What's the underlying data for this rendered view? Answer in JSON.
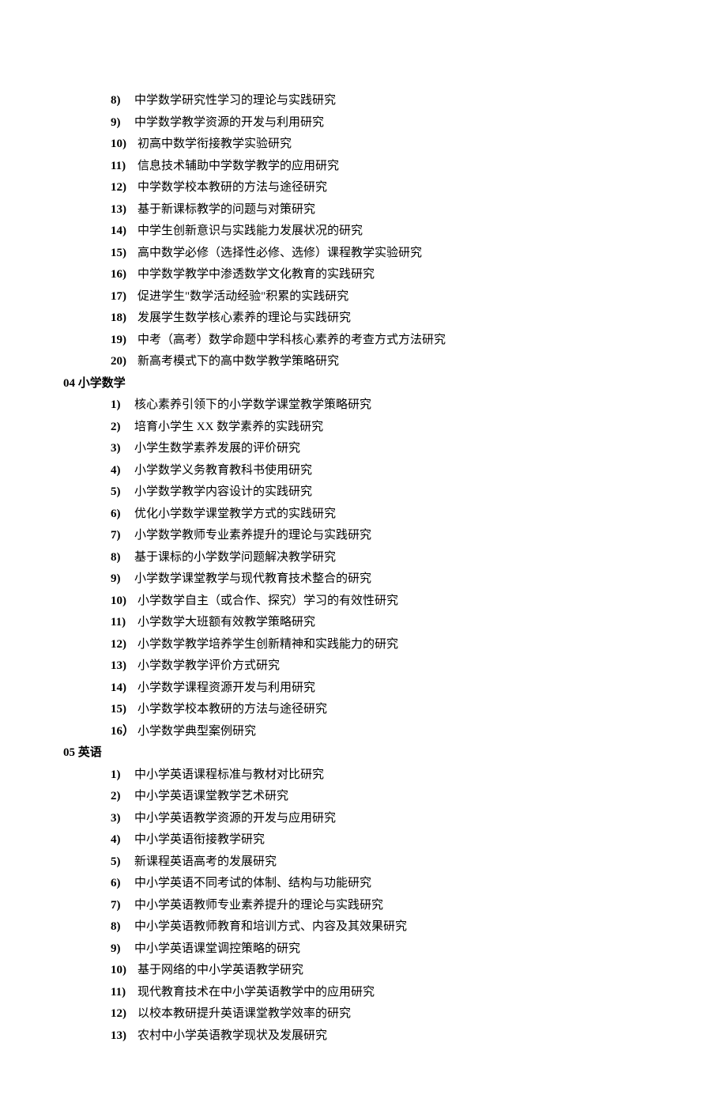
{
  "colors": {
    "background": "#ffffff",
    "text": "#000000"
  },
  "typography": {
    "font_family": "SimSun",
    "font_size_pt": 11,
    "line_height": 1.7,
    "marker_weight": "bold",
    "heading_weight": "bold"
  },
  "sections": [
    {
      "heading": null,
      "startIndex": 8,
      "markerStyle": "paren",
      "items": [
        "中学数学研究性学习的理论与实践研究",
        "中学数学教学资源的开发与利用研究",
        "初高中数学衔接教学实验研究",
        "信息技术辅助中学数学教学的应用研究",
        "中学数学校本教研的方法与途径研究",
        "基于新课标教学的问题与对策研究",
        "中学生创新意识与实践能力发展状况的研究",
        "高中数学必修（选择性必修、选修）课程教学实验研究",
        "中学数学教学中渗透数学文化教育的实践研究",
        "促进学生\"数学活动经验\"积累的实践研究",
        "发展学生数学核心素养的理论与实践研究",
        "中考（高考）数学命题中学科核心素养的考查方式方法研究",
        "新高考模式下的高中数学教学策略研究"
      ]
    },
    {
      "heading": "04 小学数学",
      "startIndex": 1,
      "markerStyle": "paren",
      "lastMarkerOverride": "16）",
      "items": [
        "核心素养引领下的小学数学课堂教学策略研究",
        "培育小学生 XX 数学素养的实践研究",
        "小学生数学素养发展的评价研究",
        "小学数学义务教育教科书使用研究",
        "小学数学教学内容设计的实践研究",
        "优化小学数学课堂教学方式的实践研究",
        "小学数学教师专业素养提升的理论与实践研究",
        "基于课标的小学数学问题解决教学研究",
        "小学数学课堂教学与现代教育技术整合的研究",
        "小学数学自主（或合作、探究）学习的有效性研究",
        "小学数学大班额有效教学策略研究",
        "小学数学教学培养学生创新精神和实践能力的研究",
        "小学数学教学评价方式研究",
        "小学数学课程资源开发与利用研究",
        "小学数学校本教研的方法与途径研究",
        "小学数学典型案例研究"
      ]
    },
    {
      "heading": "05 英语",
      "startIndex": 1,
      "markerStyle": "paren",
      "items": [
        "中小学英语课程标准与教材对比研究",
        "中小学英语课堂教学艺术研究",
        "中小学英语教学资源的开发与应用研究",
        "中小学英语衔接教学研究",
        "新课程英语高考的发展研究",
        "中小学英语不同考试的体制、结构与功能研究",
        "中小学英语教师专业素养提升的理论与实践研究",
        "中小学英语教师教育和培训方式、内容及其效果研究",
        "中小学英语课堂调控策略的研究",
        "基于网络的中小学英语教学研究",
        "现代教育技术在中小学英语教学中的应用研究",
        "以校本教研提升英语课堂教学效率的研究",
        "农村中小学英语教学现状及发展研究"
      ]
    }
  ]
}
